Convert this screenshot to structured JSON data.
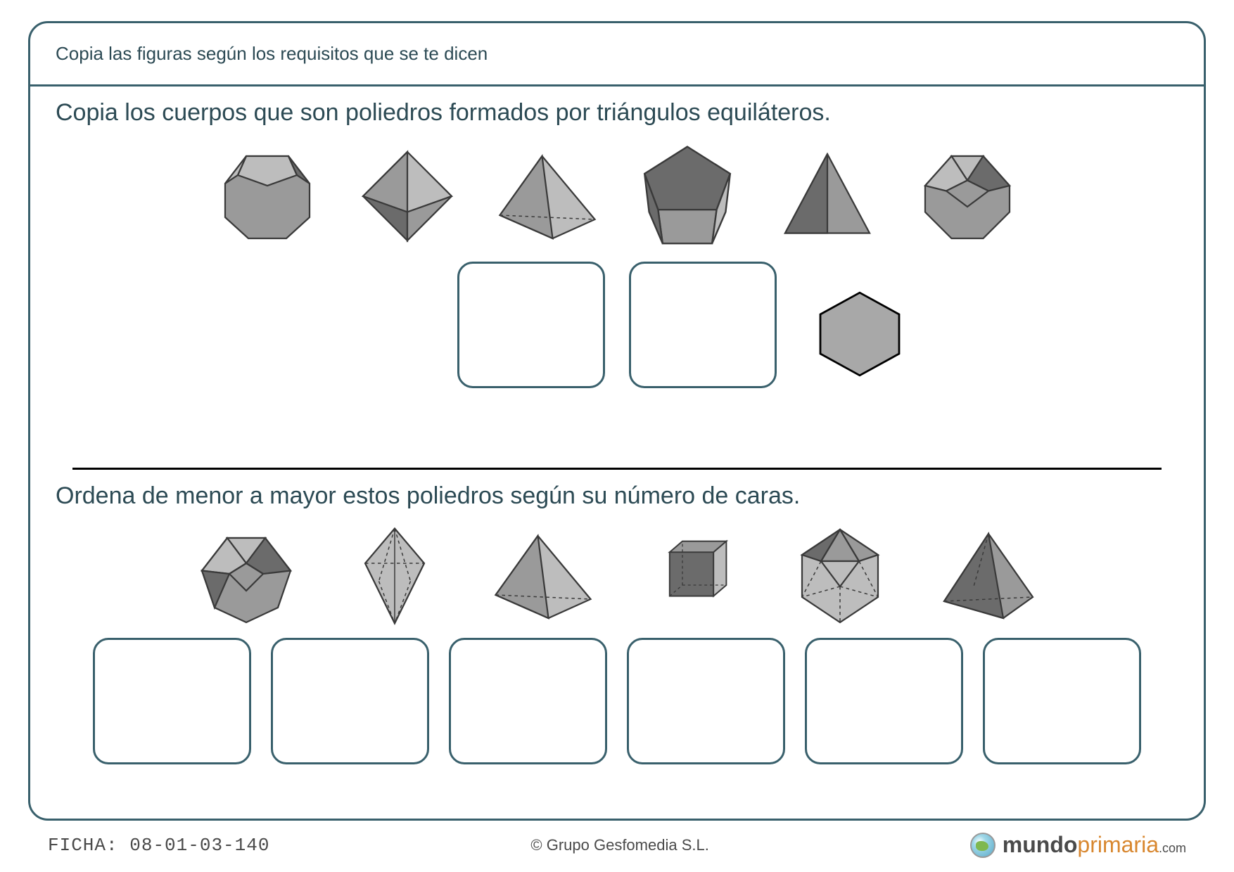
{
  "colors": {
    "frame_border": "#39606c",
    "text_dark": "#2c4a54",
    "divider": "#000000",
    "box_border": "#39606c",
    "shape_light": "#bdbdbd",
    "shape_mid": "#9a9a9a",
    "shape_dark": "#6b6b6b",
    "shape_stroke": "#3a3a3a",
    "hex_fill": "#a8a8a8",
    "brand_dark": "#4a4a4a",
    "brand_orange": "#d8872f"
  },
  "header": {
    "title": "Copia las figuras según los requisitos que se te dicen"
  },
  "section1": {
    "instruction": "Copia los cuerpos que son poliedros formados por triángulos equiláteros.",
    "shapes": [
      "truncated-cube",
      "octahedron",
      "tetra-skew",
      "pentagonal-prism",
      "tetrahedron",
      "cuboctahedron"
    ],
    "answer_slots": 2,
    "extra_shape": "hexagon-flat"
  },
  "section2": {
    "instruction": "Ordena de menor a mayor estos poliedros según su número de caras.",
    "shapes": [
      "cuboctahedron-b",
      "triakis-diamond",
      "tetra-skew",
      "cube",
      "icosahedron",
      "square-pyramid"
    ],
    "answer_slots": 6
  },
  "footer": {
    "left_label": "FICHA:",
    "left_code": "08-01-03-140",
    "center": "© Grupo Gesfomedia S.L.",
    "brand1": "mundo",
    "brand2": "primaria",
    "brand3": ".com"
  }
}
